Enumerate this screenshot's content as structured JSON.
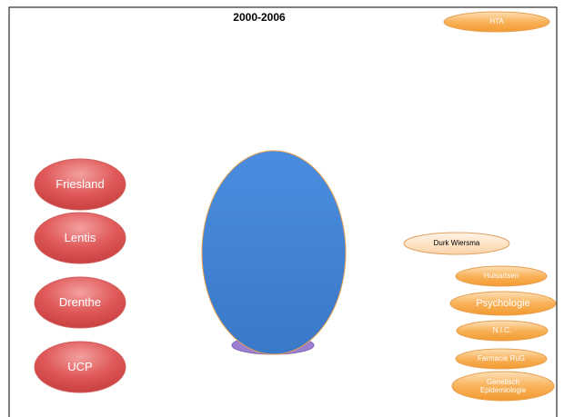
{
  "title": "2000-2006",
  "nodes": [
    {
      "label": "HTA"
    },
    {
      "label": "Friesland"
    },
    {
      "label": "Lentis"
    },
    {
      "label": "Drenthe"
    },
    {
      "label": "UCP"
    },
    {
      "label": "Durk Wiersma"
    },
    {
      "label": "Huisartsen"
    },
    {
      "label": "Psychologie"
    },
    {
      "label": "N.I.C."
    },
    {
      "label": "Farmacie RuG"
    },
    {
      "label": "Genetisch Epidemiologie"
    }
  ]
}
